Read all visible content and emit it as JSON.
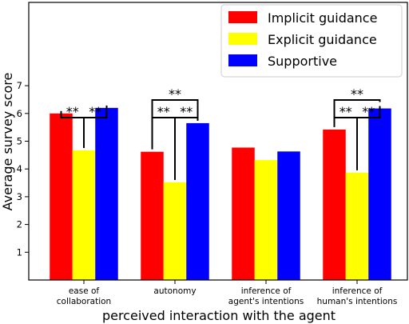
{
  "chart_data": {
    "type": "bar",
    "categories": [
      [
        "ease of",
        "collaboration"
      ],
      [
        "autonomy"
      ],
      [
        "inference of",
        "agent's intentions"
      ],
      [
        "inference of",
        "human's intentions"
      ]
    ],
    "series": [
      {
        "name": "Implicit guidance",
        "color": "#ff0000",
        "values": [
          6.0,
          4.62,
          4.77,
          5.42
        ]
      },
      {
        "name": "Explicit guidance",
        "color": "#ffff00",
        "values": [
          4.67,
          3.52,
          4.32,
          3.87
        ]
      },
      {
        "name": "Supportive",
        "color": "#0000ff",
        "values": [
          6.2,
          5.65,
          4.63,
          6.18
        ]
      }
    ],
    "xlabel": "perceived interaction with the agent",
    "ylabel": "Average survey score",
    "ylim": [
      0,
      10
    ],
    "yticks": [
      1,
      2,
      3,
      4,
      5,
      6,
      7
    ],
    "legend_position": "top-right",
    "grid": false,
    "significance_label": "**",
    "significance_brackets": [
      {
        "category": 0,
        "from": 0,
        "to": 1,
        "level": 0
      },
      {
        "category": 0,
        "from": 1,
        "to": 2,
        "level": 0
      },
      {
        "category": 1,
        "from": 0,
        "to": 1,
        "level": 0
      },
      {
        "category": 1,
        "from": 1,
        "to": 2,
        "level": 0
      },
      {
        "category": 1,
        "from": 0,
        "to": 2,
        "level": 1
      },
      {
        "category": 3,
        "from": 0,
        "to": 1,
        "level": 0
      },
      {
        "category": 3,
        "from": 1,
        "to": 2,
        "level": 0
      },
      {
        "category": 3,
        "from": 0,
        "to": 2,
        "level": 1
      }
    ]
  }
}
